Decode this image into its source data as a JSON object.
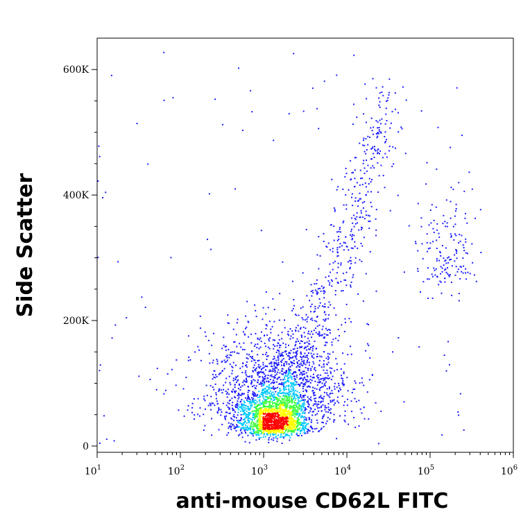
{
  "chart_data": {
    "type": "scatter",
    "subtype": "flow-cytometry density dot plot",
    "xlabel": "anti-mouse CD62L FITC",
    "ylabel": "Side Scatter",
    "xscale": "log",
    "xlim": [
      10,
      1000000
    ],
    "ylim": [
      -10000,
      650000
    ],
    "x_ticks": [
      {
        "base": "10",
        "exp": "1",
        "value": 10
      },
      {
        "base": "10",
        "exp": "2",
        "value": 100
      },
      {
        "base": "10",
        "exp": "3",
        "value": 1000
      },
      {
        "base": "10",
        "exp": "4",
        "value": 10000
      },
      {
        "base": "10",
        "exp": "5",
        "value": 100000
      },
      {
        "base": "10",
        "exp": "6",
        "value": 1000000
      }
    ],
    "y_ticks": [
      {
        "label": "0",
        "value": 0
      },
      {
        "label": "200K",
        "value": 200000
      },
      {
        "label": "400K",
        "value": 400000
      },
      {
        "label": "600K",
        "value": 600000
      }
    ],
    "grid": false,
    "legend": "none",
    "colors": {
      "low_density": "#1a1aff",
      "mid_low_density": "#00c8ff",
      "mid_density": "#40ff40",
      "mid_high_density": "#ffff00",
      "high_density": "#ff0000",
      "axis": "#000000"
    },
    "populations": [
      {
        "description": "main dense cluster",
        "x_center": 1300,
        "y_center": 30000,
        "x_spread_log": 0.22,
        "y_spread": 25000,
        "count": 1400,
        "density": "high"
      },
      {
        "description": "diffuse low-SSC spread",
        "x_center": 1500,
        "y_center": 70000,
        "x_spread_log": 0.45,
        "y_spread": 60000,
        "count": 1300,
        "density": "low"
      },
      {
        "description": "diagonal tail",
        "x_from": 1000,
        "x_to": 30000,
        "y_from": 80000,
        "y_to": 550000,
        "count": 700,
        "density": "low"
      },
      {
        "description": "high-CD62L cluster",
        "x_center": 150000,
        "y_center": 280000,
        "x_spread_log": 0.18,
        "y_spread": 70000,
        "count": 160,
        "density": "low"
      },
      {
        "description": "sparse background events",
        "x_from": 10,
        "x_to": 300000,
        "y_from": 0,
        "y_to": 630000,
        "count": 120,
        "density": "low"
      }
    ]
  }
}
